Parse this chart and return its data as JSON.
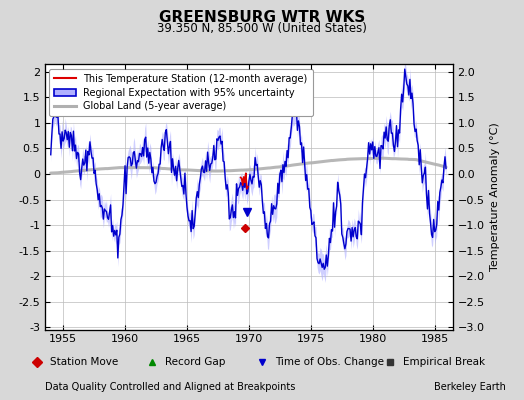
{
  "title": "GREENSBURG WTR WKS",
  "subtitle": "39.350 N, 85.500 W (United States)",
  "xlabel_left": "Data Quality Controlled and Aligned at Breakpoints",
  "xlabel_right": "Berkeley Earth",
  "ylabel": "Temperature Anomaly (°C)",
  "xlim": [
    1953.5,
    1986.5
  ],
  "ylim": [
    -3.05,
    2.15
  ],
  "yticks": [
    -3,
    -2.5,
    -2,
    -1.5,
    -1,
    -0.5,
    0,
    0.5,
    1,
    1.5,
    2
  ],
  "xticks": [
    1955,
    1960,
    1965,
    1970,
    1975,
    1980,
    1985
  ],
  "bg_color": "#d8d8d8",
  "plot_bg_color": "#ffffff",
  "grid_color": "#bbbbbb",
  "station_color": "#dd0000",
  "regional_color": "#0000cc",
  "regional_fill_color": "#b0b0ff",
  "global_color": "#b0b0b0",
  "legend_items": [
    "This Temperature Station (12-month average)",
    "Regional Expectation with 95% uncertainty",
    "Global Land (5-year average)"
  ],
  "bottom_legend": [
    {
      "label": "Station Move",
      "color": "#cc0000",
      "marker": "D"
    },
    {
      "label": "Record Gap",
      "color": "#008800",
      "marker": "^"
    },
    {
      "label": "Time of Obs. Change",
      "color": "#0000cc",
      "marker": "v"
    },
    {
      "label": "Empirical Break",
      "color": "#333333",
      "marker": "s"
    }
  ],
  "station_move_x": 1969.7,
  "station_move_y": -1.05,
  "obs_change_x": 1969.85,
  "obs_change_y": -0.75
}
